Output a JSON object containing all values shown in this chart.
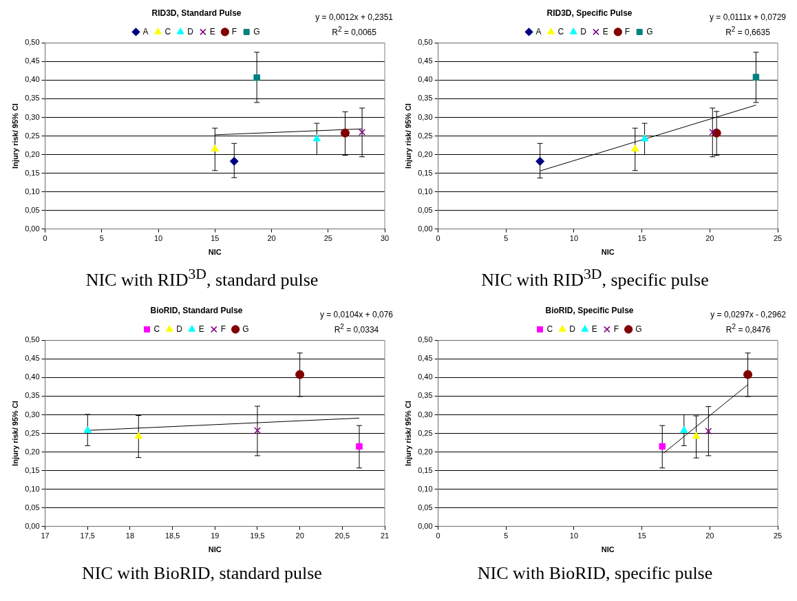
{
  "chart_data": [
    {
      "type": "scatter",
      "title": "RID3D, Standard Pulse",
      "xlabel": "NIC",
      "ylabel": "Injury risk/ 95% CI",
      "legend": "top",
      "grid": "y",
      "xlim": [
        0,
        30
      ],
      "xticks": [
        0,
        5,
        10,
        15,
        20,
        25,
        30
      ],
      "ylim": [
        0,
        0.5
      ],
      "yticks": [
        {
          "value": 0,
          "label": "0,00"
        },
        {
          "value": 0.05,
          "label": "0,05"
        },
        {
          "value": 0.1,
          "label": "0,10"
        },
        {
          "value": 0.15,
          "label": "0,15"
        },
        {
          "value": 0.2,
          "label": "0,20"
        },
        {
          "value": 0.25,
          "label": "0,25"
        },
        {
          "value": 0.3,
          "label": "0,30"
        },
        {
          "value": 0.35,
          "label": "0,35"
        },
        {
          "value": 0.4,
          "label": "0,40"
        },
        {
          "value": 0.45,
          "label": "0,45"
        },
        {
          "value": 0.5,
          "label": "0,50"
        }
      ],
      "annotations": [
        "y = 0,0012x + 0,2351",
        "R$^{2}$ = 0,0065",
        "NIC with RID$^{3D}$, standard pulse"
      ],
      "series": [
        {
          "type": "line",
          "color": "#000000",
          "marker": "none",
          "x": [
            15,
            28
          ],
          "values": [
            0.253,
            0.269
          ]
        },
        {
          "name": "A",
          "color": "#000080",
          "marker": "diamond",
          "x": [
            16.7
          ],
          "values": [
            0.182
          ],
          "errors": [
            [
              0.138,
              0.23
            ]
          ]
        },
        {
          "name": "C",
          "color": "#ffff00",
          "marker": "triangle",
          "x": [
            15
          ],
          "values": [
            0.215
          ],
          "errors": [
            [
              0.157,
              0.271
            ]
          ]
        },
        {
          "name": "D",
          "color": "#00ffff",
          "marker": "triangle",
          "x": [
            24
          ],
          "values": [
            0.242
          ],
          "errors": [
            [
              0.2,
              0.284
            ]
          ]
        },
        {
          "name": "E",
          "color": "#800080",
          "marker": "cross",
          "x": [
            28
          ],
          "values": [
            0.26
          ],
          "errors": [
            [
              0.194,
              0.325
            ]
          ]
        },
        {
          "name": "F",
          "color": "#800000",
          "marker": "circle",
          "x": [
            26.5
          ],
          "values": [
            0.258
          ],
          "errors": [
            [
              0.198,
              0.315
            ]
          ]
        },
        {
          "name": "G",
          "color": "#008080",
          "marker": "square",
          "x": [
            18.7
          ],
          "values": [
            0.407
          ],
          "errors": [
            [
              0.34,
              0.475
            ]
          ]
        }
      ]
    },
    {
      "type": "scatter",
      "title": "RID3D, Specific Pulse",
      "xlabel": "NIC",
      "ylabel": "Injury risk/ 95% CI",
      "legend": "top",
      "grid": "y",
      "xlim": [
        0,
        25
      ],
      "xticks": [
        0,
        5,
        10,
        15,
        20,
        25
      ],
      "ylim": [
        0,
        0.5
      ],
      "yticks": [
        {
          "value": 0,
          "label": "0,00"
        },
        {
          "value": 0.05,
          "label": "0,05"
        },
        {
          "value": 0.1,
          "label": "0,10"
        },
        {
          "value": 0.15,
          "label": "0,15"
        },
        {
          "value": 0.2,
          "label": "0,20"
        },
        {
          "value": 0.25,
          "label": "0,25"
        },
        {
          "value": 0.3,
          "label": "0,30"
        },
        {
          "value": 0.35,
          "label": "0,35"
        },
        {
          "value": 0.4,
          "label": "0,40"
        },
        {
          "value": 0.45,
          "label": "0,45"
        },
        {
          "value": 0.5,
          "label": "0,50"
        }
      ],
      "annotations": [
        "y = 0,0111x + 0,0729",
        "R$^{2}$ = 0,6635",
        "NIC with RID$^{3D}$, specific pulse"
      ],
      "series": [
        {
          "type": "line",
          "color": "#000000",
          "marker": "none",
          "x": [
            7.5,
            23.4
          ],
          "values": [
            0.156,
            0.333
          ]
        },
        {
          "name": "A",
          "color": "#000080",
          "marker": "diamond",
          "x": [
            7.5
          ],
          "values": [
            0.182
          ],
          "errors": [
            [
              0.137,
              0.23
            ]
          ]
        },
        {
          "name": "C",
          "color": "#ffff00",
          "marker": "triangle",
          "x": [
            14.5
          ],
          "values": [
            0.215
          ],
          "errors": [
            [
              0.157,
              0.271
            ]
          ]
        },
        {
          "name": "D",
          "color": "#00ffff",
          "marker": "triangle",
          "x": [
            15.2
          ],
          "values": [
            0.242
          ],
          "errors": [
            [
              0.2,
              0.284
            ]
          ]
        },
        {
          "name": "E",
          "color": "#800080",
          "marker": "cross",
          "x": [
            20.2
          ],
          "values": [
            0.26
          ],
          "errors": [
            [
              0.194,
              0.325
            ]
          ]
        },
        {
          "name": "F",
          "color": "#800000",
          "marker": "circle",
          "x": [
            20.5
          ],
          "values": [
            0.258
          ],
          "errors": [
            [
              0.198,
              0.316
            ]
          ]
        },
        {
          "name": "G",
          "color": "#008080",
          "marker": "square",
          "x": [
            23.4
          ],
          "values": [
            0.408
          ],
          "errors": [
            [
              0.34,
              0.475
            ]
          ]
        }
      ]
    },
    {
      "type": "scatter",
      "title": "BioRID, Standard Pulse",
      "xlabel": "NIC",
      "ylabel": "Injury risk/ 95% CI",
      "legend": "top",
      "grid": "y",
      "xlim": [
        17,
        21
      ],
      "xticks": [
        17,
        {
          "value": 17.5,
          "label": "17,5"
        },
        18,
        {
          "value": 18.5,
          "label": "18,5"
        },
        19,
        {
          "value": 19.5,
          "label": "19,5"
        },
        20,
        {
          "value": 20.5,
          "label": "20,5"
        },
        21
      ],
      "ylim": [
        0,
        0.5
      ],
      "yticks": [
        {
          "value": 0,
          "label": "0,00"
        },
        {
          "value": 0.05,
          "label": "0,05"
        },
        {
          "value": 0.1,
          "label": "0,10"
        },
        {
          "value": 0.15,
          "label": "0,15"
        },
        {
          "value": 0.2,
          "label": "0,20"
        },
        {
          "value": 0.25,
          "label": "0,25"
        },
        {
          "value": 0.3,
          "label": "0,30"
        },
        {
          "value": 0.35,
          "label": "0,35"
        },
        {
          "value": 0.4,
          "label": "0,40"
        },
        {
          "value": 0.45,
          "label": "0,45"
        },
        {
          "value": 0.5,
          "label": "0,50"
        }
      ],
      "annotations": [
        "y = 0,0104x + 0,076",
        "R$^{2}$ = 0,0334",
        "NIC with BioRID, standard pulse"
      ],
      "series": [
        {
          "type": "line",
          "color": "#000000",
          "marker": "none",
          "x": [
            17.5,
            20.7
          ],
          "values": [
            0.258,
            0.291
          ]
        },
        {
          "name": "C",
          "color": "#ff00ff",
          "marker": "square",
          "x": [
            20.7
          ],
          "values": [
            0.215
          ],
          "errors": [
            [
              0.157,
              0.271
            ]
          ]
        },
        {
          "name": "D",
          "color": "#ffff00",
          "marker": "triangle",
          "x": [
            18.1
          ],
          "values": [
            0.242
          ],
          "errors": [
            [
              0.185,
              0.298
            ]
          ]
        },
        {
          "name": "E",
          "color": "#00ffff",
          "marker": "triangle",
          "x": [
            17.5
          ],
          "values": [
            0.258
          ],
          "errors": [
            [
              0.217,
              0.301
            ]
          ]
        },
        {
          "name": "F",
          "color": "#800080",
          "marker": "cross",
          "x": [
            19.5
          ],
          "values": [
            0.258
          ],
          "errors": [
            [
              0.19,
              0.323
            ]
          ]
        },
        {
          "name": "G",
          "color": "#800000",
          "marker": "circle",
          "x": [
            20
          ],
          "values": [
            0.408
          ],
          "errors": [
            [
              0.349,
              0.466
            ]
          ]
        }
      ]
    },
    {
      "type": "scatter",
      "title": "BioRID, Specific Pulse",
      "xlabel": "NIC",
      "ylabel": "Injury risk/ 95% CI",
      "legend": "top",
      "grid": "y",
      "xlim": [
        0,
        25
      ],
      "xticks": [
        0,
        5,
        10,
        15,
        20,
        25
      ],
      "ylim": [
        0,
        0.5
      ],
      "yticks": [
        {
          "value": 0,
          "label": "0,00"
        },
        {
          "value": 0.05,
          "label": "0,05"
        },
        {
          "value": 0.1,
          "label": "0,10"
        },
        {
          "value": 0.15,
          "label": "0,15"
        },
        {
          "value": 0.2,
          "label": "0,20"
        },
        {
          "value": 0.25,
          "label": "0,25"
        },
        {
          "value": 0.3,
          "label": "0,30"
        },
        {
          "value": 0.35,
          "label": "0,35"
        },
        {
          "value": 0.4,
          "label": "0,40"
        },
        {
          "value": 0.45,
          "label": "0,45"
        },
        {
          "value": 0.5,
          "label": "0,50"
        }
      ],
      "annotations": [
        "y = 0,0297x - 0,2962",
        "R$^{2}$ = 0,8476",
        "NIC with BioRID, specific pulse"
      ],
      "series": [
        {
          "type": "line",
          "color": "#000000",
          "marker": "none",
          "x": [
            16.6,
            22.8
          ],
          "values": [
            0.197,
            0.381
          ]
        },
        {
          "name": "C",
          "color": "#ff00ff",
          "marker": "square",
          "x": [
            16.5
          ],
          "values": [
            0.215
          ],
          "errors": [
            [
              0.157,
              0.271
            ]
          ]
        },
        {
          "name": "D",
          "color": "#ffff00",
          "marker": "triangle",
          "x": [
            19
          ],
          "values": [
            0.242
          ],
          "errors": [
            [
              0.184,
              0.297
            ]
          ]
        },
        {
          "name": "E",
          "color": "#00ffff",
          "marker": "triangle",
          "x": [
            18.1
          ],
          "values": [
            0.258
          ],
          "errors": [
            [
              0.217,
              0.3
            ]
          ]
        },
        {
          "name": "F",
          "color": "#800080",
          "marker": "cross",
          "x": [
            19.9
          ],
          "values": [
            0.256
          ],
          "errors": [
            [
              0.19,
              0.322
            ]
          ]
        },
        {
          "name": "G",
          "color": "#800000",
          "marker": "circle",
          "x": [
            22.8
          ],
          "values": [
            0.408
          ],
          "errors": [
            [
              0.349,
              0.466
            ]
          ]
        }
      ]
    }
  ]
}
